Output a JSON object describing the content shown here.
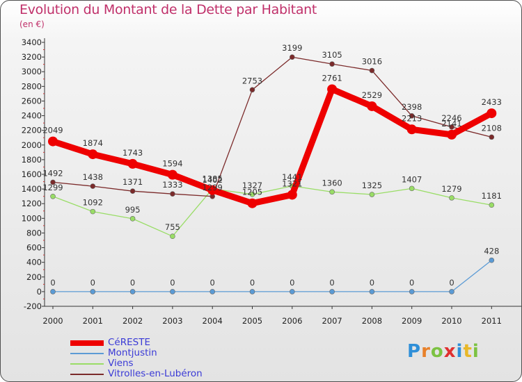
{
  "title": "Evolution du Montant de la Dette par Habitant",
  "unit": "(en €)",
  "logo": "Proxiti",
  "chart_data": {
    "type": "line",
    "title": "Evolution du Montant de la Dette par Habitant",
    "subtitle": "(en €)",
    "x": [
      "2000",
      "2001",
      "2002",
      "2003",
      "2004",
      "2005",
      "2006",
      "2007",
      "2008",
      "2009",
      "2010",
      "2011"
    ],
    "ylim": [
      -200,
      3400
    ],
    "yticks": [
      -200,
      0,
      200,
      400,
      600,
      800,
      1000,
      1200,
      1400,
      1600,
      1800,
      2000,
      2200,
      2400,
      2600,
      2800,
      3000,
      3200,
      3400
    ],
    "grid": false,
    "legend_position": "bottom-left",
    "series": [
      {
        "name": "CéRESTE",
        "color": "#ee0000",
        "values": [
          2049,
          1874,
          1743,
          1594,
          1385,
          1205,
          1321,
          2761,
          2529,
          2213,
          2141,
          2433
        ]
      },
      {
        "name": "Montjustin",
        "color": "#5b9bd5",
        "values": [
          0,
          0,
          0,
          0,
          0,
          0,
          0,
          0,
          0,
          0,
          0,
          428
        ]
      },
      {
        "name": "Viens",
        "color": "#99dd66",
        "values": [
          1299,
          1092,
          995,
          755,
          1402,
          1327,
          1441,
          1360,
          1325,
          1407,
          1279,
          1181
        ]
      },
      {
        "name": "Vitrolles-en-Lubéron",
        "color": "#7b2a2a",
        "values": [
          1492,
          1438,
          1371,
          1333,
          1299,
          2753,
          3199,
          3105,
          3016,
          2398,
          2246,
          2108
        ]
      }
    ]
  }
}
